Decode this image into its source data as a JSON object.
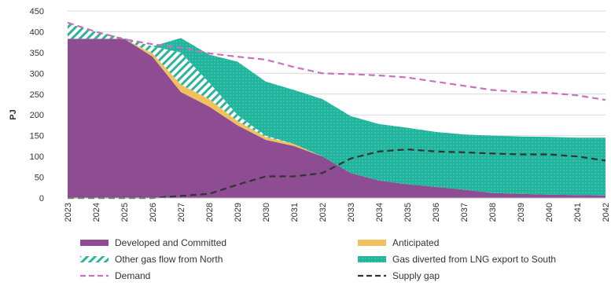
{
  "chart_data": {
    "type": "area",
    "ylabel": "PJ",
    "xlabel": "",
    "title": "",
    "ylim": [
      0,
      450
    ],
    "yticks": [
      0,
      50,
      100,
      150,
      200,
      250,
      300,
      350,
      400,
      450
    ],
    "grid": "horizontal",
    "legend_position": "bottom",
    "x": [
      "2023",
      "2024",
      "2025",
      "2026",
      "2027",
      "2028",
      "2029",
      "2030",
      "2031",
      "2032",
      "2033",
      "2034",
      "2035",
      "2036",
      "2037",
      "2038",
      "2039",
      "2040",
      "2041",
      "2042"
    ],
    "stacked_series": [
      {
        "name": "Developed and Committed",
        "color": "#8e4c92",
        "values": [
          383,
          383,
          383,
          340,
          255,
          220,
          175,
          140,
          125,
          100,
          60,
          42,
          33,
          27,
          20,
          12,
          10,
          8,
          7,
          6
        ]
      },
      {
        "name": "Anticipated",
        "color": "#f2c05c",
        "values": [
          0,
          0,
          0,
          8,
          18,
          18,
          10,
          7,
          5,
          0,
          0,
          0,
          0,
          0,
          0,
          0,
          0,
          0,
          0,
          0
        ]
      },
      {
        "name": "Other gas flow from North",
        "color": "#2fb39a",
        "pattern": "hatch",
        "values": [
          37,
          17,
          2,
          17,
          77,
          40,
          15,
          3,
          0,
          0,
          0,
          0,
          0,
          0,
          0,
          0,
          0,
          0,
          0,
          0
        ]
      },
      {
        "name": "Gas diverted from LNG export to South",
        "color": "#1fb49c",
        "pattern": "dots",
        "values": [
          0,
          0,
          0,
          0,
          35,
          67,
          128,
          130,
          130,
          138,
          137,
          136,
          136,
          132,
          133,
          138,
          138,
          139,
          138,
          139
        ]
      }
    ],
    "line_series": [
      {
        "name": "Demand",
        "color": "#c971bd",
        "dash": "dashed",
        "values": [
          422,
          400,
          382,
          370,
          362,
          348,
          340,
          333,
          315,
          300,
          298,
          295,
          290,
          280,
          270,
          260,
          255,
          253,
          247,
          236
        ]
      },
      {
        "name": "Supply gap",
        "color": "#333333",
        "dash": "dashed",
        "values": [
          0,
          0,
          0,
          0,
          5,
          10,
          32,
          52,
          52,
          60,
          95,
          112,
          117,
          112,
          110,
          107,
          105,
          105,
          100,
          90
        ]
      }
    ],
    "legend": [
      {
        "label": "Developed and Committed",
        "key": "fill",
        "color": "#8e4c92"
      },
      {
        "label": "Anticipated",
        "key": "fill",
        "color": "#f2c05c"
      },
      {
        "label": "Other gas flow from North",
        "key": "hatch",
        "color": "#2fb39a"
      },
      {
        "label": "Gas diverted from LNG export to South",
        "key": "dots",
        "color": "#1fb49c"
      },
      {
        "label": "Demand",
        "key": "dash",
        "color": "#c971bd"
      },
      {
        "label": "Supply gap",
        "key": "dash",
        "color": "#333333"
      }
    ]
  }
}
